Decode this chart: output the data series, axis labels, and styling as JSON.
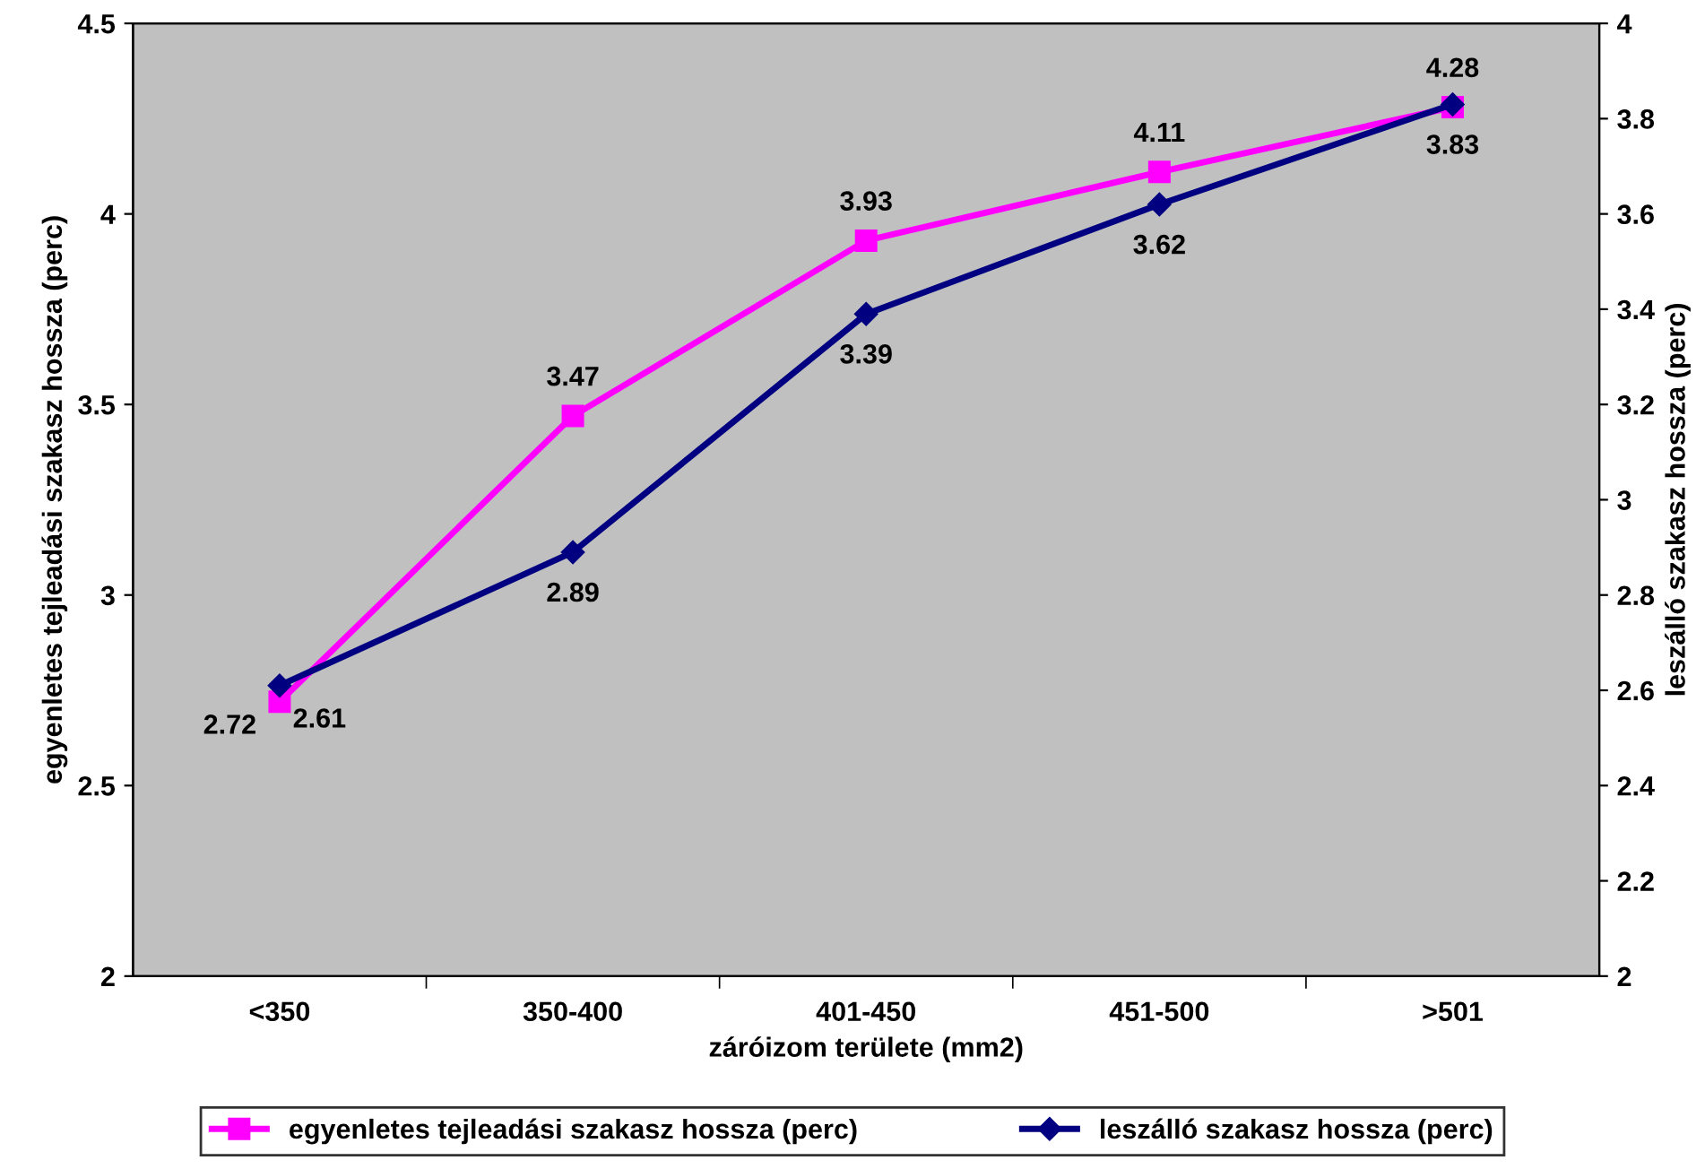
{
  "chart_data": {
    "type": "line",
    "xlabel": "záróizom területe (mm2)",
    "ylabel": "egyenletes tejleadási szakasz hossza (perc)",
    "y2label": "leszálló szakasz hossza (perc)",
    "categories": [
      "<350",
      "350-400",
      "401-450",
      "451-500",
      ">501"
    ],
    "series": [
      {
        "name": "egyenletes tejleadási szakasz hossza (perc)",
        "color": "#ff00ff",
        "marker": "square",
        "values": [
          2.72,
          3.47,
          3.93,
          4.11,
          4.28
        ]
      },
      {
        "name": "leszálló szakasz hossza (perc)",
        "color": "#000080",
        "marker": "diamond",
        "axis": "y2",
        "values": [
          2.61,
          2.89,
          3.39,
          3.62,
          3.83
        ]
      }
    ],
    "ylim": [
      2,
      4.5
    ],
    "yticks": [
      2,
      2.5,
      3,
      3.5,
      4,
      4.5
    ],
    "y2lim": [
      2,
      4
    ],
    "y2ticks": [
      2,
      2.2,
      2.4,
      2.6,
      2.8,
      3,
      3.2,
      3.4,
      3.6,
      3.8,
      4
    ],
    "data_labels": true,
    "grid": false,
    "legend": "bottom"
  }
}
